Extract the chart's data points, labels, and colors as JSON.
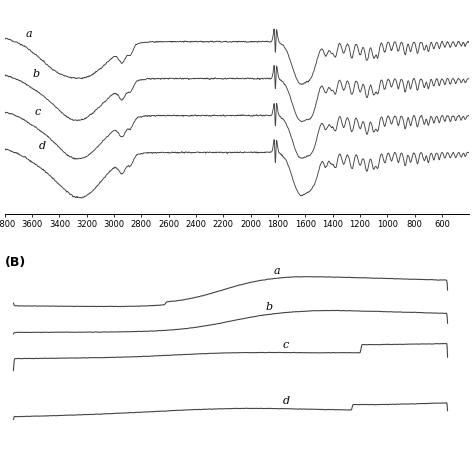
{
  "panel_A": {
    "x_ticks": [
      3800,
      3600,
      3400,
      3200,
      3000,
      2800,
      2600,
      2400,
      2200,
      2000,
      1800,
      1600,
      1400,
      1200,
      1000,
      800,
      600
    ],
    "labels": [
      "a",
      "b",
      "c",
      "d"
    ]
  },
  "panel_B": {
    "labels": [
      "a",
      "b",
      "c",
      "d"
    ],
    "label_B": "(B)"
  },
  "line_color": "#444444",
  "bg_color": "#ffffff",
  "tick_fontsize": 6,
  "label_fontsize": 8
}
